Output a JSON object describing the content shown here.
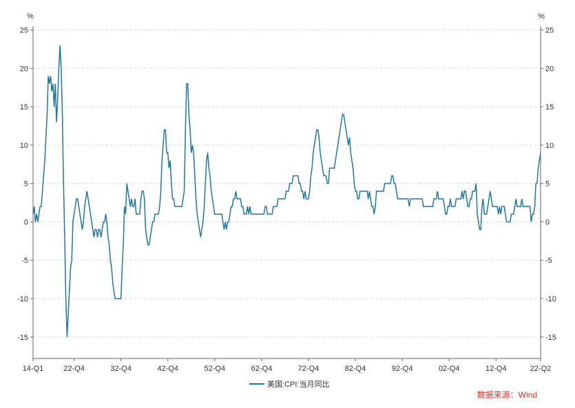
{
  "chart_data": {
    "type": "line",
    "y_unit": "%",
    "y2_unit": "%",
    "source": "数据来源：Wind",
    "categories": [
      "14-Q1",
      null,
      null,
      null,
      null,
      null,
      null,
      null,
      null,
      null,
      null,
      null,
      null,
      null,
      null,
      null,
      null,
      null,
      null,
      null,
      null,
      null,
      null,
      null,
      null,
      null,
      null,
      null,
      null,
      null,
      null,
      null,
      null,
      null,
      null,
      "22-Q4",
      null,
      null,
      null,
      null,
      null,
      null,
      null,
      null,
      null,
      null,
      null,
      null,
      null,
      null,
      null,
      null,
      null,
      null,
      null,
      null,
      null,
      null,
      null,
      null,
      null,
      null,
      null,
      null,
      null,
      null,
      null,
      null,
      null,
      null,
      null,
      null,
      null,
      null,
      null,
      "32-Q4",
      null,
      null,
      null,
      null,
      null,
      null,
      null,
      null,
      null,
      null,
      null,
      null,
      null,
      null,
      null,
      null,
      null,
      null,
      null,
      null,
      null,
      null,
      null,
      null,
      null,
      null,
      null,
      null,
      null,
      null,
      null,
      null,
      null,
      null,
      null,
      null,
      null,
      null,
      null,
      "42-Q4",
      null,
      null,
      null,
      null,
      null,
      null,
      null,
      null,
      null,
      null,
      null,
      null,
      null,
      null,
      null,
      null,
      null,
      null,
      null,
      null,
      null,
      null,
      null,
      null,
      null,
      null,
      null,
      null,
      null,
      null,
      null,
      null,
      null,
      null,
      null,
      null,
      null,
      null,
      null,
      "52-Q4",
      null,
      null,
      null,
      null,
      null,
      null,
      null,
      null,
      null,
      null,
      null,
      null,
      null,
      null,
      null,
      null,
      null,
      null,
      null,
      null,
      null,
      null,
      null,
      null,
      null,
      null,
      null,
      null,
      null,
      null,
      null,
      null,
      null,
      null,
      null,
      null,
      null,
      null,
      null,
      "62-Q4",
      null,
      null,
      null,
      null,
      null,
      null,
      null,
      null,
      null,
      null,
      null,
      null,
      null,
      null,
      null,
      null,
      null,
      null,
      null,
      null,
      null,
      null,
      null,
      null,
      null,
      null,
      null,
      null,
      null,
      null,
      null,
      null,
      null,
      null,
      null,
      null,
      null,
      null,
      null,
      "72-Q4",
      null,
      null,
      null,
      null,
      null,
      null,
      null,
      null,
      null,
      null,
      null,
      null,
      null,
      null,
      null,
      null,
      null,
      null,
      null,
      null,
      null,
      null,
      null,
      null,
      null,
      null,
      null,
      null,
      null,
      null,
      null,
      null,
      null,
      null,
      null,
      null,
      null,
      null,
      null,
      "82-Q4",
      null,
      null,
      null,
      null,
      null,
      null,
      null,
      null,
      null,
      null,
      null,
      null,
      null,
      null,
      null,
      null,
      null,
      null,
      null,
      null,
      null,
      null,
      null,
      null,
      null,
      null,
      null,
      null,
      null,
      null,
      null,
      null,
      null,
      null,
      null,
      null,
      null,
      null,
      null,
      "92-Q4",
      null,
      null,
      null,
      null,
      null,
      null,
      null,
      null,
      null,
      null,
      null,
      null,
      null,
      null,
      null,
      null,
      null,
      null,
      null,
      null,
      null,
      null,
      null,
      null,
      null,
      null,
      null,
      null,
      null,
      null,
      null,
      null,
      null,
      null,
      null,
      null,
      null,
      null,
      null,
      "02-Q4",
      null,
      null,
      null,
      null,
      null,
      null,
      null,
      null,
      null,
      null,
      null,
      null,
      null,
      null,
      null,
      null,
      null,
      null,
      null,
      null,
      null,
      null,
      null,
      null,
      null,
      null,
      null,
      null,
      null,
      null,
      null,
      null,
      null,
      null,
      null,
      null,
      null,
      null,
      null,
      "12-Q4",
      null,
      null,
      null,
      null,
      null,
      null,
      null,
      null,
      null,
      null,
      null,
      null,
      null,
      null,
      null,
      null,
      null,
      null,
      null,
      null,
      null,
      null,
      null,
      null,
      null,
      null,
      null,
      null,
      null,
      null,
      null,
      null,
      null,
      null,
      null,
      null,
      null,
      "22-Q2"
    ],
    "series": [
      {
        "name": "美国:CPI:当月同比",
        "color": "#1f77a4",
        "values": [
          1,
          2,
          0,
          1,
          0,
          1,
          2,
          2,
          4,
          6,
          8,
          11,
          14,
          19,
          18,
          19,
          17,
          18,
          15,
          18,
          13,
          16,
          20,
          23,
          20,
          14,
          5,
          -2,
          -10,
          -15,
          -12,
          -9,
          -6,
          -5,
          0,
          1,
          2,
          3,
          3,
          2,
          1,
          0,
          -1,
          0,
          2,
          3,
          4,
          3,
          2,
          1,
          0,
          -1,
          -2,
          -1,
          -1,
          -2,
          -1,
          -1,
          -2,
          -1,
          0,
          0,
          1,
          0,
          -2,
          -3,
          -5,
          -6,
          -8,
          -9,
          -10,
          -10,
          -10,
          -10,
          -10,
          -10,
          -6,
          -3,
          2,
          1,
          5,
          4,
          3,
          2,
          3,
          2,
          2,
          3,
          1,
          1,
          1,
          1,
          3,
          4,
          4,
          3,
          -1,
          -2,
          -3,
          -3,
          -2,
          -1,
          0,
          0,
          1,
          1,
          1,
          1,
          2,
          4,
          8,
          10,
          12,
          12,
          9,
          9,
          7,
          8,
          5,
          3,
          3,
          2,
          2,
          2,
          2,
          2,
          2,
          2,
          3,
          4,
          12,
          18,
          18,
          14,
          12,
          9,
          10,
          9,
          6,
          3,
          1,
          0,
          -1,
          -2,
          -1,
          0,
          2,
          5,
          8,
          9,
          7,
          6,
          4,
          3,
          2,
          1,
          1,
          1,
          1,
          1,
          1,
          1,
          0,
          -1,
          0,
          -1,
          0,
          0,
          1,
          2,
          2,
          3,
          3,
          4,
          3,
          3,
          3,
          3,
          2,
          2,
          1,
          1,
          1,
          2,
          1,
          2,
          1,
          1,
          1,
          1,
          1,
          1,
          1,
          1,
          1,
          1,
          1,
          1,
          2,
          2,
          1,
          1,
          1,
          1,
          1,
          2,
          2,
          2,
          2,
          3,
          3,
          3,
          3,
          3,
          3,
          3,
          4,
          4,
          4,
          5,
          5,
          5,
          6,
          6,
          6,
          6,
          6,
          5,
          5,
          4,
          4,
          3,
          4,
          3,
          3,
          3,
          4,
          6,
          7,
          9,
          10,
          11,
          12,
          12,
          11,
          9,
          8,
          7,
          6,
          6,
          6,
          5,
          5,
          7,
          7,
          7,
          7,
          7,
          8,
          9,
          10,
          11,
          12,
          13,
          14,
          14,
          13,
          12,
          11,
          10,
          11,
          9,
          8,
          7,
          5,
          4,
          4,
          3,
          3,
          4,
          4,
          4,
          4,
          4,
          4,
          4,
          3,
          4,
          3,
          2,
          2,
          1,
          2,
          4,
          4,
          4,
          4,
          4,
          4,
          4,
          5,
          5,
          5,
          5,
          5,
          5,
          6,
          6,
          5,
          5,
          4,
          3,
          3,
          3,
          3,
          3,
          3,
          3,
          3,
          3,
          3,
          2,
          3,
          3,
          3,
          3,
          3,
          3,
          3,
          3,
          3,
          3,
          3,
          2,
          2,
          2,
          2,
          2,
          2,
          2,
          2,
          2,
          3,
          3,
          3,
          4,
          3,
          3,
          3,
          3,
          3,
          2,
          1,
          1,
          2,
          2,
          3,
          2,
          2,
          2,
          2,
          3,
          3,
          3,
          3,
          3,
          4,
          3,
          4,
          4,
          3,
          2,
          2,
          3,
          3,
          4,
          4,
          4,
          5,
          1,
          0,
          -1,
          -1,
          2,
          3,
          1,
          1,
          1,
          2,
          3,
          4,
          3,
          2,
          2,
          2,
          2,
          2,
          1,
          2,
          1,
          2,
          2,
          2,
          1,
          0,
          0,
          0,
          0,
          1,
          1,
          1,
          2,
          3,
          2,
          2,
          2,
          2,
          3,
          2,
          2,
          2,
          2,
          2,
          2,
          2,
          0,
          1,
          1,
          2,
          5,
          5,
          7,
          8,
          9
        ]
      }
    ],
    "ylim": [
      -17.8,
      25.5
    ],
    "yticks": [
      -15,
      -10,
      -5,
      0,
      5,
      10,
      15,
      20,
      25
    ],
    "y2lim": [
      -17.8,
      25.5
    ],
    "y2ticks": [
      -15,
      -10,
      -5,
      0,
      5,
      10,
      15,
      20,
      25
    ],
    "grid": true,
    "legend": "bottom"
  }
}
